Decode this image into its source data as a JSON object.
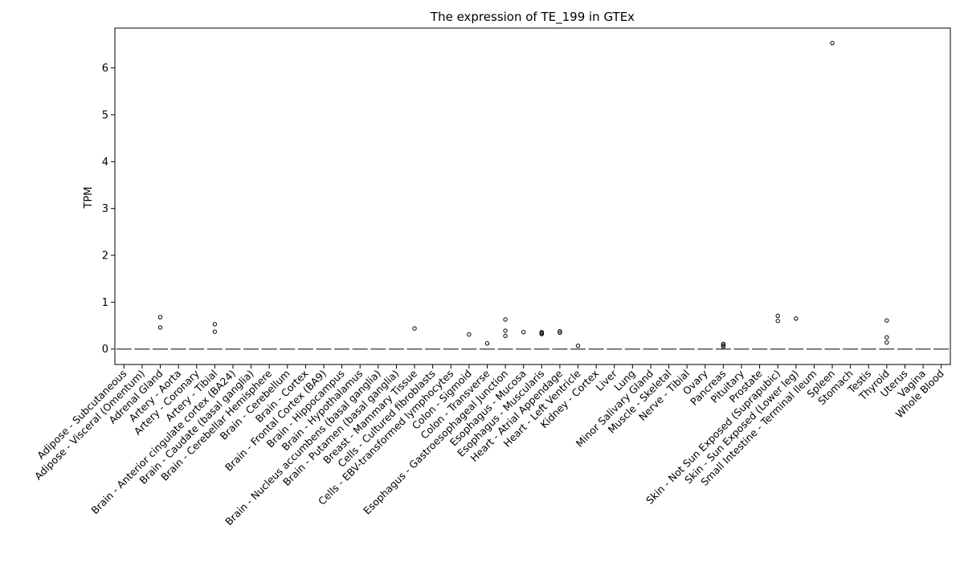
{
  "chart_data": {
    "type": "box",
    "title": "The expression of TE_199 in GTEx",
    "xlabel": "",
    "ylabel": "TPM",
    "ylim": [
      -0.33,
      6.85
    ],
    "yticks": [
      0,
      1,
      2,
      3,
      4,
      5,
      6
    ],
    "grid": false,
    "legend": "none",
    "colors": {
      "axis": "#000000",
      "median": "#555555",
      "outlier_edge": "#000000",
      "background": "#ffffff"
    },
    "categories": [
      "Adipose - Subcutaneous",
      "Adipose - Visceral (Omentum)",
      "Adrenal Gland",
      "Artery - Aorta",
      "Artery - Coronary",
      "Artery - Tibial",
      "Brain - Anterior cingulate cortex (BA24)",
      "Brain - Caudate (basal ganglia)",
      "Brain - Cerebellar Hemisphere",
      "Brain - Cerebellum",
      "Brain - Cortex",
      "Brain - Frontal Cortex (BA9)",
      "Brain - Hippocampus",
      "Brain - Hypothalamus",
      "Brain - Nucleus accumbens (basal ganglia)",
      "Brain - Putamen (basal ganglia)",
      "Breast - Mammary Tissue",
      "Cells - Cultured fibroblasts",
      "Cells - EBV-transformed lymphocytes",
      "Colon - Sigmoid",
      "Colon - Transverse",
      "Esophagus - Gastroesophageal Junction",
      "Esophagus - Mucosa",
      "Esophagus - Muscularis",
      "Heart - Atrial Appendage",
      "Heart - Left Ventricle",
      "Kidney - Cortex",
      "Liver",
      "Lung",
      "Minor Salivary Gland",
      "Muscle - Skeletal",
      "Nerve - Tibial",
      "Ovary",
      "Pancreas",
      "Pituitary",
      "Prostate",
      "Skin - Not Sun Exposed (Suprapubic)",
      "Skin - Sun Exposed (Lower leg)",
      "Small Intestine - Terminal Ileum",
      "Spleen",
      "Stomach",
      "Testis",
      "Thyroid",
      "Uterus",
      "Vagina",
      "Whole Blood"
    ],
    "medians": [
      0,
      0,
      0,
      0,
      0,
      0,
      0,
      0,
      0,
      0,
      0,
      0,
      0,
      0,
      0,
      0,
      0,
      0,
      0,
      0,
      0,
      0,
      0,
      0,
      0,
      0,
      0,
      0,
      0,
      0,
      0,
      0,
      0,
      0,
      0,
      0,
      0,
      0,
      0,
      0,
      0,
      0,
      0,
      0,
      0,
      0
    ],
    "outliers": [
      [],
      [],
      [
        0.46,
        0.68
      ],
      [],
      [],
      [
        0.37,
        0.53
      ],
      [],
      [],
      [],
      [],
      [],
      [],
      [],
      [],
      [],
      [],
      [
        0.44
      ],
      [],
      [],
      [
        0.31
      ],
      [
        0.12
      ],
      [
        0.28,
        0.39,
        0.63
      ],
      [
        0.36
      ],
      [
        0.32,
        0.34,
        0.36
      ],
      [
        0.35,
        0.38
      ],
      [
        0.07
      ],
      [],
      [],
      [],
      [],
      [],
      [],
      [],
      [
        0.05,
        0.08,
        0.11
      ],
      [],
      [],
      [
        0.6,
        0.71
      ],
      [
        0.65
      ],
      [],
      [
        6.53
      ],
      [],
      [],
      [
        0.14,
        0.25,
        0.61
      ],
      [],
      [],
      []
    ]
  }
}
